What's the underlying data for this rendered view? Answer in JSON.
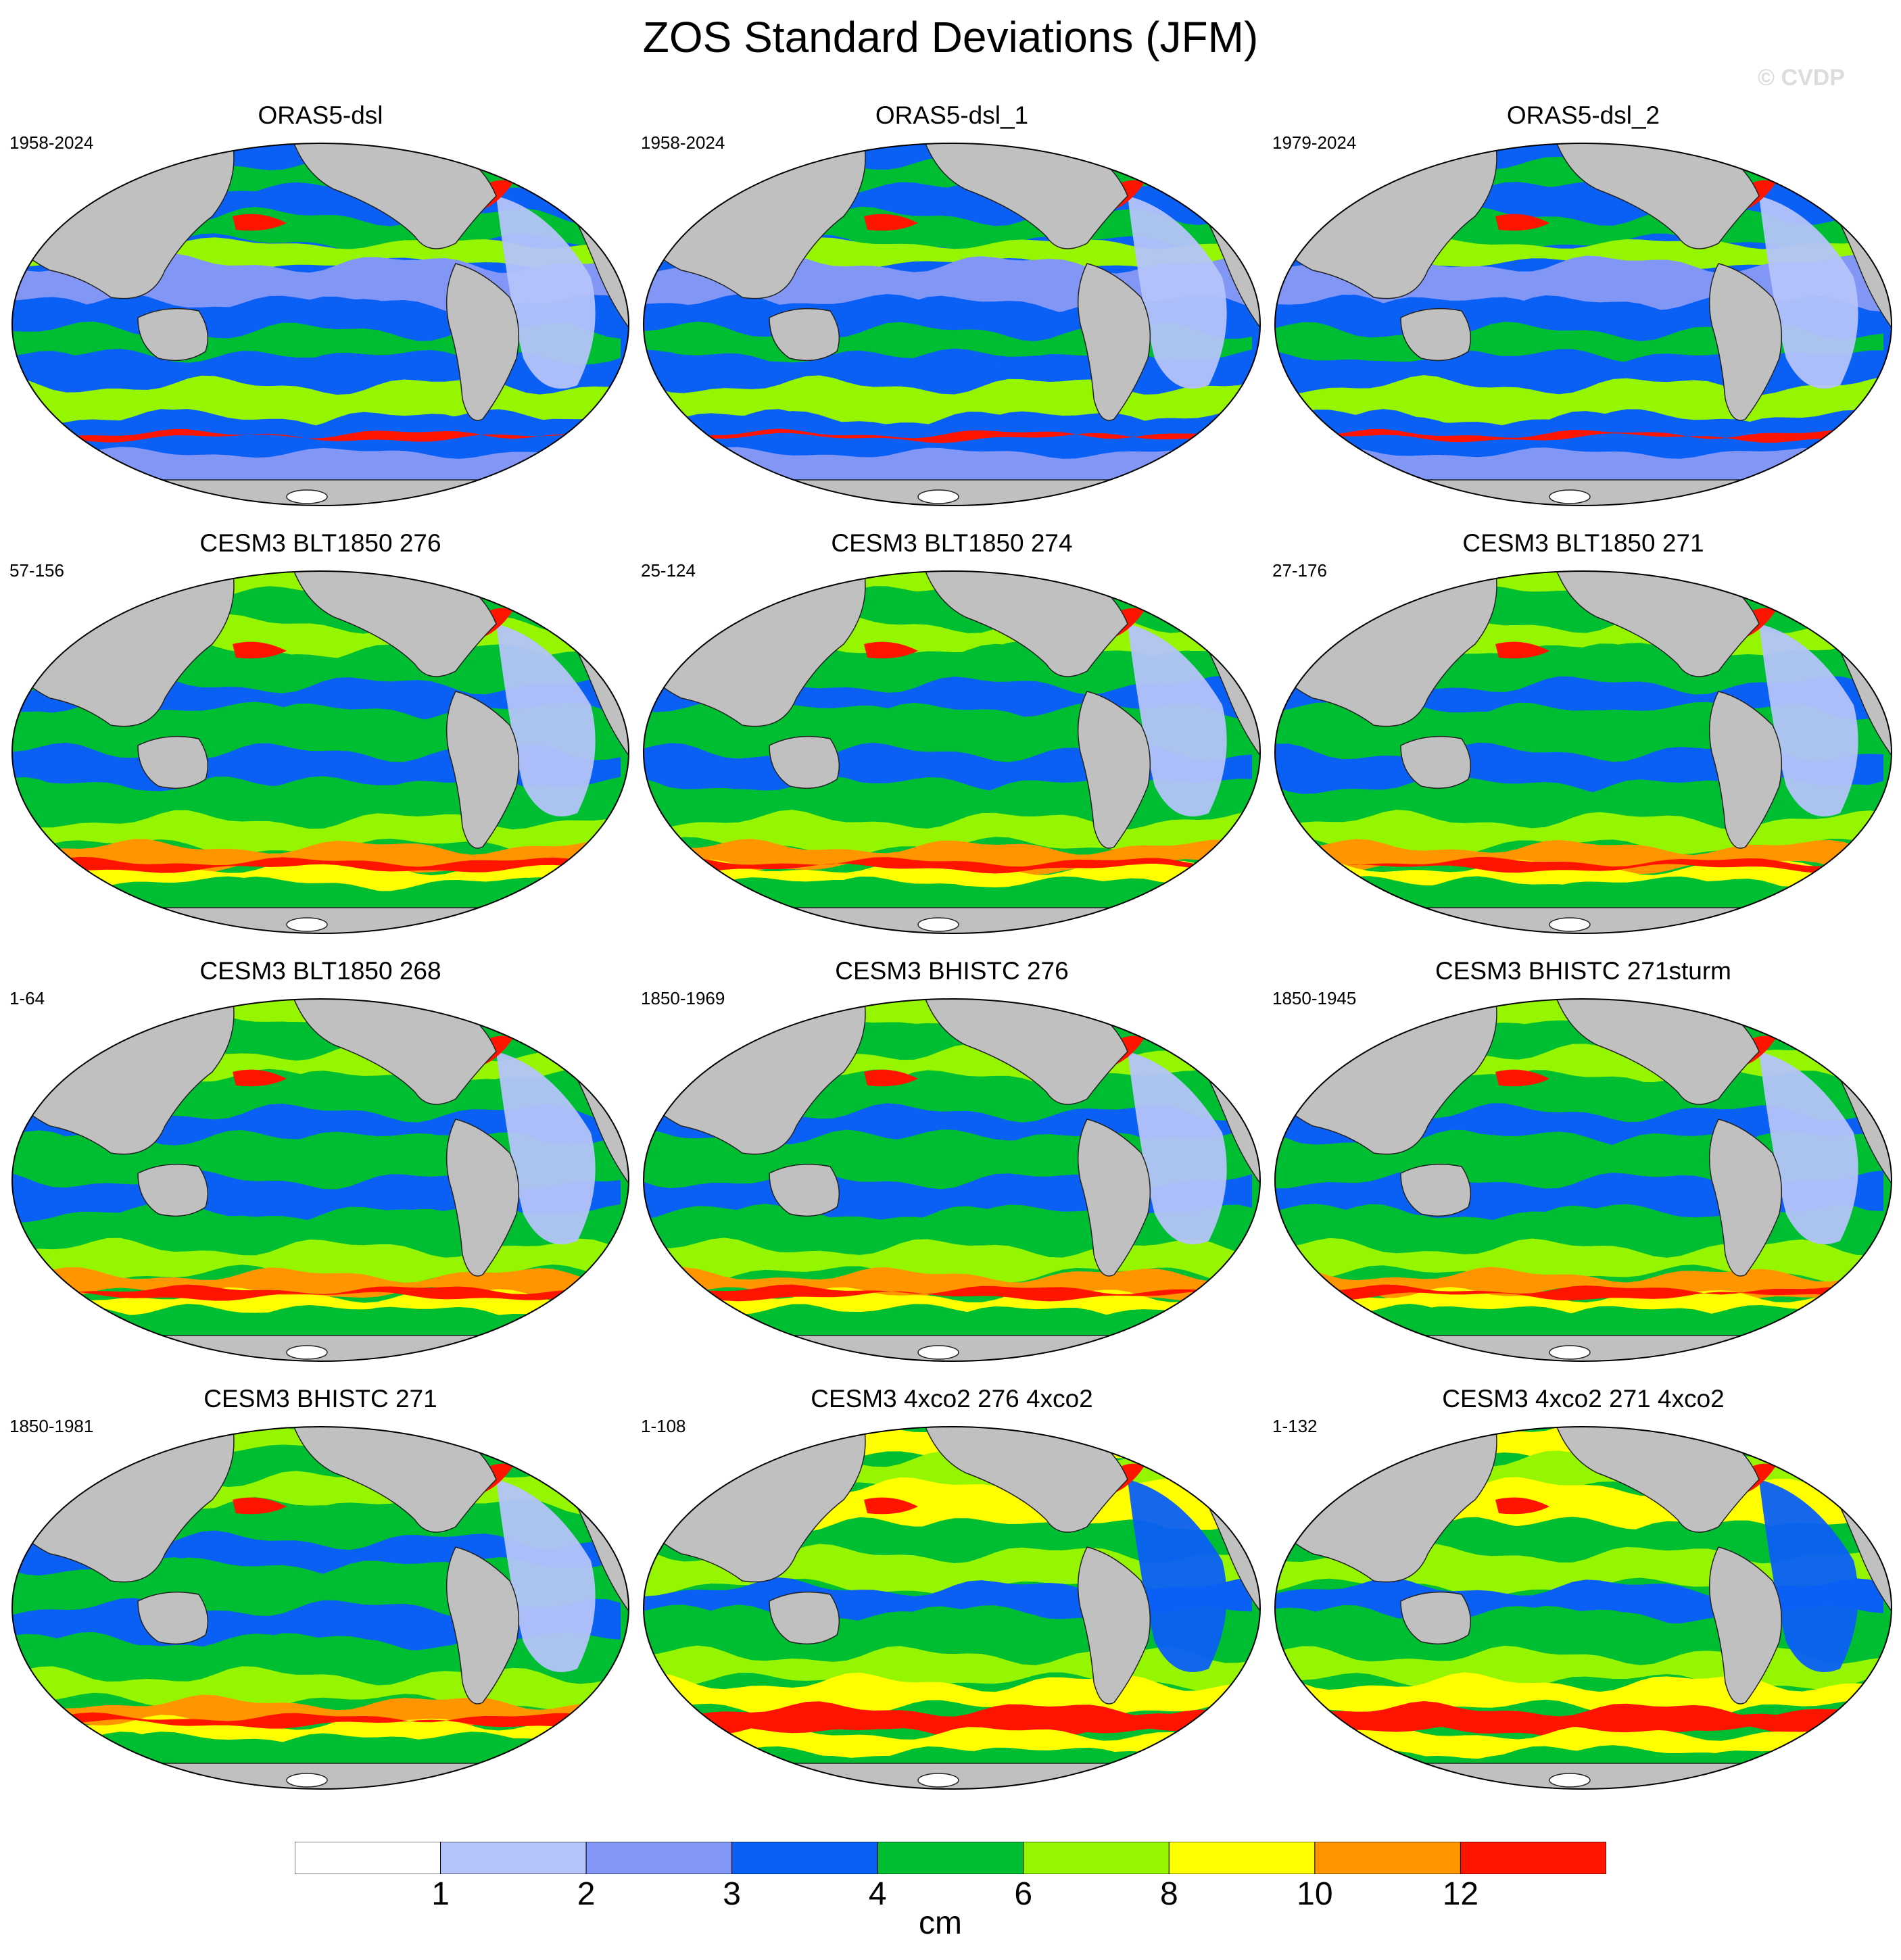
{
  "title": "ZOS Standard Deviations (JFM)",
  "watermark": "© CVDP",
  "panels": [
    {
      "name": "ORAS5-dsl",
      "years": "1958-2024",
      "variant": "obs"
    },
    {
      "name": "ORAS5-dsl_1",
      "years": "1958-2024",
      "variant": "obs"
    },
    {
      "name": "ORAS5-dsl_2",
      "years": "1979-2024",
      "variant": "obs"
    },
    {
      "name": "CESM3 BLT1850 276",
      "years": "57-156",
      "variant": "model"
    },
    {
      "name": "CESM3 BLT1850 274",
      "years": "25-124",
      "variant": "model"
    },
    {
      "name": "CESM3 BLT1850 271",
      "years": "27-176",
      "variant": "model"
    },
    {
      "name": "CESM3 BLT1850 268",
      "years": "1-64",
      "variant": "model"
    },
    {
      "name": "CESM3 BHISTC 276",
      "years": "1850-1969",
      "variant": "model"
    },
    {
      "name": "CESM3 BHISTC 271sturm",
      "years": "1850-1945",
      "variant": "model"
    },
    {
      "name": "CESM3 BHISTC 271",
      "years": "1850-1981",
      "variant": "model"
    },
    {
      "name": "CESM3 4xco2 276 4xco2",
      "years": "1-108",
      "variant": "warm"
    },
    {
      "name": "CESM3 4xco2 271 4xco2",
      "years": "1-132",
      "variant": "warm"
    }
  ],
  "colorbar": {
    "unit": "cm",
    "levels": [
      "1",
      "2",
      "3",
      "4",
      "6",
      "8",
      "10",
      "12"
    ],
    "colors": [
      "#ffffff",
      "#b4c3fa",
      "#8296f5",
      "#0a5ff5",
      "#00be32",
      "#96f500",
      "#ffff00",
      "#ff9600",
      "#ff1400"
    ]
  }
}
